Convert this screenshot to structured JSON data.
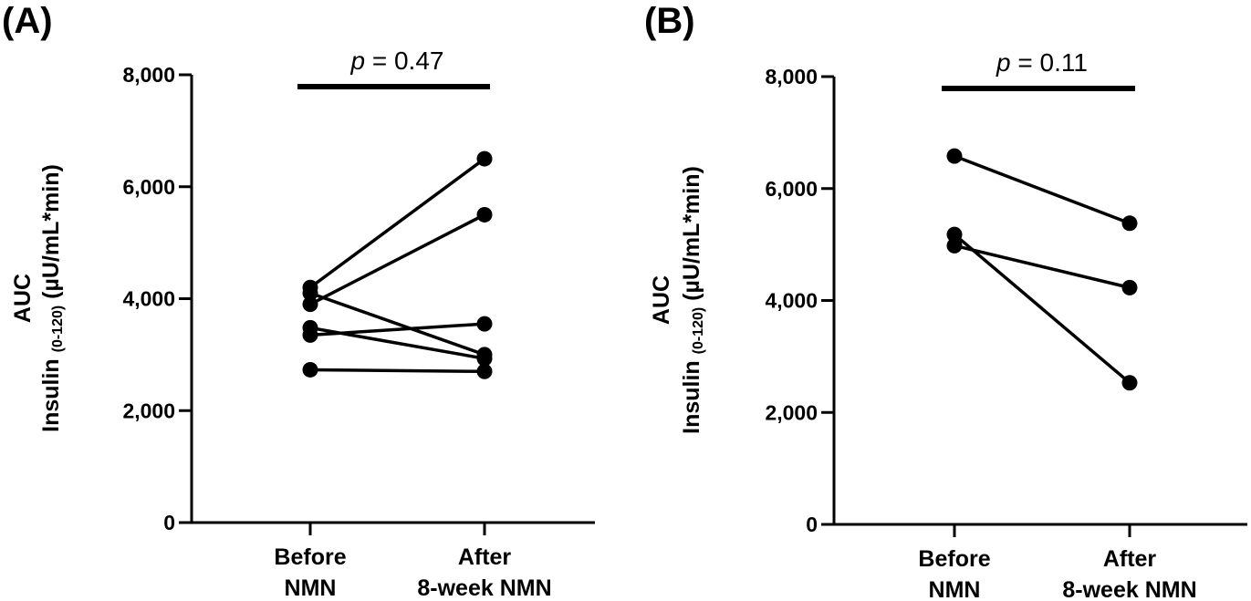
{
  "chart_data": [
    {
      "panel_label": "(A)",
      "type": "line",
      "ylabel_line1": "AUC",
      "ylabel_main": "Insulin",
      "ylabel_sub": "(0-120)",
      "ylabel_unit": "(µU/mL*min)",
      "categories": [
        "Before\nNMN",
        "After\n8-week NMN"
      ],
      "category_lines": [
        [
          "Before",
          "NMN"
        ],
        [
          "After",
          "8-week NMN"
        ]
      ],
      "ylim": [
        0,
        8000
      ],
      "yticks": [
        0,
        2000,
        4000,
        6000,
        8000
      ],
      "ytick_labels": [
        "0",
        "2,000",
        "4,000",
        "6,000",
        "8,000"
      ],
      "annotation": {
        "p_symbol": "p",
        "p_text": " = 0.47"
      },
      "series": [
        {
          "values": [
            4200,
            6500
          ]
        },
        {
          "values": [
            3900,
            5500
          ]
        },
        {
          "values": [
            4100,
            3000
          ]
        },
        {
          "values": [
            3480,
            2930
          ]
        },
        {
          "values": [
            3350,
            3550
          ]
        },
        {
          "values": [
            2730,
            2700
          ]
        }
      ]
    },
    {
      "panel_label": "(B)",
      "type": "line",
      "ylabel_line1": "AUC",
      "ylabel_main": "Insulin",
      "ylabel_sub": "(0-120)",
      "ylabel_unit": "(µU/mL*min)",
      "categories": [
        "Before\nNMN",
        "After\n8-week NMN"
      ],
      "category_lines": [
        [
          "Before",
          "NMN"
        ],
        [
          "After",
          "8-week NMN"
        ]
      ],
      "ylim": [
        0,
        8000
      ],
      "yticks": [
        0,
        2000,
        4000,
        6000,
        8000
      ],
      "ytick_labels": [
        "0",
        "2,000",
        "4,000",
        "6,000",
        "8,000"
      ],
      "annotation": {
        "p_symbol": "p",
        "p_text": " = 0.11"
      },
      "series": [
        {
          "values": [
            6580,
            5380
          ]
        },
        {
          "values": [
            4980,
            4230
          ]
        },
        {
          "values": [
            5180,
            2530
          ]
        }
      ]
    }
  ],
  "colors": {
    "ink": "#000000",
    "background": "#ffffff"
  }
}
